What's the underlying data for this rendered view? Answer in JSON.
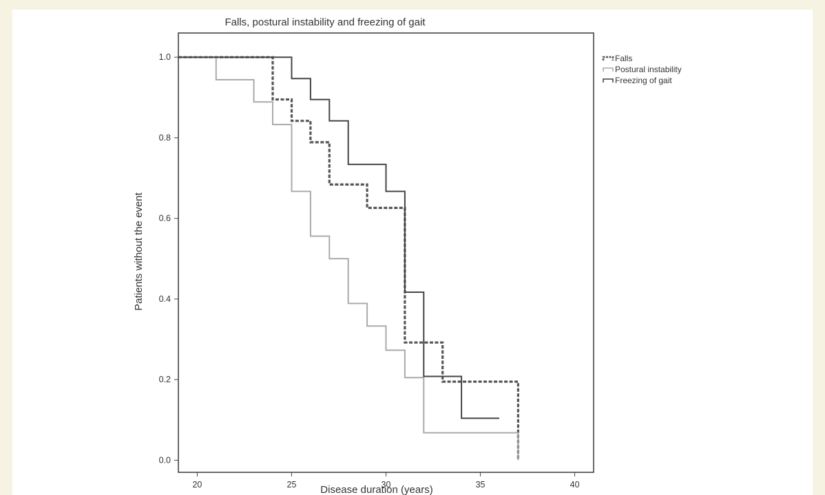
{
  "chart_data": {
    "type": "line",
    "subtype": "step (Kaplan-Meier)",
    "title": "Falls, postural instability and freezing of gait",
    "xlabel": "Disease duration (years)",
    "ylabel": "Patients without the event",
    "xlim": [
      19,
      41
    ],
    "ylim": [
      -0.03,
      1.06
    ],
    "xticks": [
      20,
      25,
      30,
      35,
      40
    ],
    "xtick_labels": [
      "20",
      "25",
      "30",
      "35",
      "40"
    ],
    "yticks": [
      0.0,
      0.2,
      0.4,
      0.6,
      0.8,
      1.0
    ],
    "ytick_labels": [
      "0.0",
      "0.2",
      "0.4",
      "0.6",
      "0.8",
      "1.0"
    ],
    "grid": false,
    "legend_position": "top-right, outside plot",
    "series": [
      {
        "name": "Falls",
        "color": "#555555",
        "dash": "dashed",
        "x": [
          19,
          24,
          24,
          25,
          25,
          26,
          26,
          27,
          27,
          29,
          29,
          31,
          31,
          33,
          33,
          37,
          37
        ],
        "y": [
          1.0,
          1.0,
          0.895,
          0.895,
          0.842,
          0.842,
          0.789,
          0.789,
          0.684,
          0.684,
          0.626,
          0.626,
          0.292,
          0.292,
          0.195,
          0.195,
          0.0
        ]
      },
      {
        "name": "Postural instability",
        "color": "#aaaaaa",
        "dash": "solid",
        "x": [
          19,
          21,
          21,
          23,
          23,
          24,
          24,
          25,
          25,
          26,
          26,
          27,
          27,
          28,
          28,
          29,
          29,
          30,
          30,
          31,
          31,
          32,
          32,
          37,
          37
        ],
        "y": [
          1.0,
          1.0,
          0.944,
          0.944,
          0.889,
          0.889,
          0.833,
          0.833,
          0.667,
          0.667,
          0.556,
          0.556,
          0.5,
          0.5,
          0.389,
          0.389,
          0.333,
          0.333,
          0.273,
          0.273,
          0.205,
          0.205,
          0.068,
          0.068,
          0.0
        ]
      },
      {
        "name": "Freezing of gait",
        "color": "#444444",
        "dash": "solid",
        "x": [
          19,
          25,
          25,
          26,
          26,
          27,
          27,
          28,
          28,
          30,
          30,
          31,
          31,
          32,
          32,
          33,
          33,
          34,
          34,
          36
        ],
        "y": [
          1.0,
          1.0,
          0.947,
          0.947,
          0.895,
          0.895,
          0.842,
          0.842,
          0.734,
          0.734,
          0.667,
          0.667,
          0.417,
          0.417,
          0.208,
          0.208,
          0.208,
          0.208,
          0.104,
          0.104
        ]
      }
    ]
  }
}
